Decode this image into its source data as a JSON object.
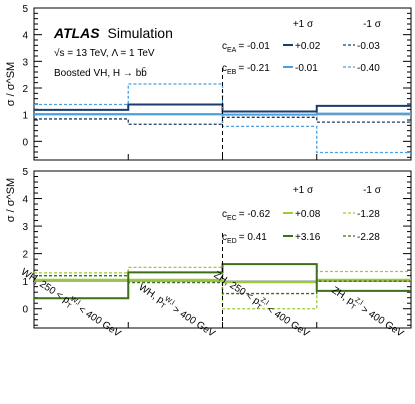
{
  "chart_data": [
    {
      "type": "line",
      "step": true,
      "categories": [
        "WH, 250 < p_T^{W,l} < 400 GeV",
        "WH, p_T^{W,l} > 400 GeV",
        "ZH, 250 < p_T^{Z,l} < 400 GeV",
        "ZH, p_T^{Z,l} > 400 GeV"
      ],
      "ylabel": "σ / σ^SM",
      "ylim": [
        -0.7,
        5
      ],
      "yticks": [
        0,
        1,
        2,
        3,
        4,
        5
      ],
      "divider_after_category": 2,
      "annotation": {
        "brand": "ATLAS",
        "brand_suffix": "Simulation",
        "line1": "√s = 13 TeV, Λ = 1 TeV",
        "line2": "Boosted VH, H → bb̄"
      },
      "legend_header": {
        "plus": "+1 σ",
        "minus": "-1 σ"
      },
      "sm_line": {
        "value": 1.0,
        "color": "#a0a0a0"
      },
      "series": [
        {
          "coeff": "c",
          "coeff_sub": "EA",
          "central": "-0.01",
          "plus_label": "+0.02",
          "minus_label": "-0.03",
          "plus_values": [
            1.18,
            1.38,
            1.12,
            1.33
          ],
          "minus_values": [
            0.84,
            0.64,
            0.9,
            0.72
          ],
          "color": "#1a3d6e"
        },
        {
          "coeff": "c",
          "coeff_sub": "EB",
          "central": "-0.21",
          "plus_label": "-0.01",
          "minus_label": "-0.40",
          "plus_values": [
            1.02,
            1.02,
            1.0,
            1.04
          ],
          "minus_values": [
            1.38,
            2.15,
            0.56,
            -0.42
          ],
          "color": "#4a9fe0"
        }
      ]
    },
    {
      "type": "line",
      "step": true,
      "categories": [
        "WH, 250 < p_T^{W,l} < 400 GeV",
        "WH, p_T^{W,l} > 400 GeV",
        "ZH, 250 < p_T^{Z,l} < 400 GeV",
        "ZH, p_T^{Z,l} > 400 GeV"
      ],
      "ylabel": "σ / σ^SM",
      "ylim": [
        -0.7,
        5
      ],
      "yticks": [
        0,
        1,
        2,
        3,
        4,
        5
      ],
      "divider_after_category": 2,
      "legend_header": {
        "plus": "+1 σ",
        "minus": "-1 σ"
      },
      "sm_line": {
        "value": 1.0,
        "color": "#a0a0a0"
      },
      "series": [
        {
          "coeff": "c",
          "coeff_sub": "EC",
          "central": "-0.62",
          "plus_label": "+0.08",
          "minus_label": "-1.28",
          "plus_values": [
            1.05,
            1.05,
            0.96,
            1.05
          ],
          "minus_values": [
            1.3,
            1.5,
            0.0,
            1.35
          ],
          "color": "#9acd32"
        },
        {
          "coeff": "c",
          "coeff_sub": "ED",
          "central": "0.41",
          "plus_label": "+3.16",
          "minus_label": "-2.28",
          "plus_values": [
            0.38,
            1.32,
            1.62,
            0.65
          ],
          "minus_values": [
            1.2,
            0.95,
            0.55,
            1.0
          ],
          "color": "#3d6e1a"
        }
      ]
    }
  ]
}
